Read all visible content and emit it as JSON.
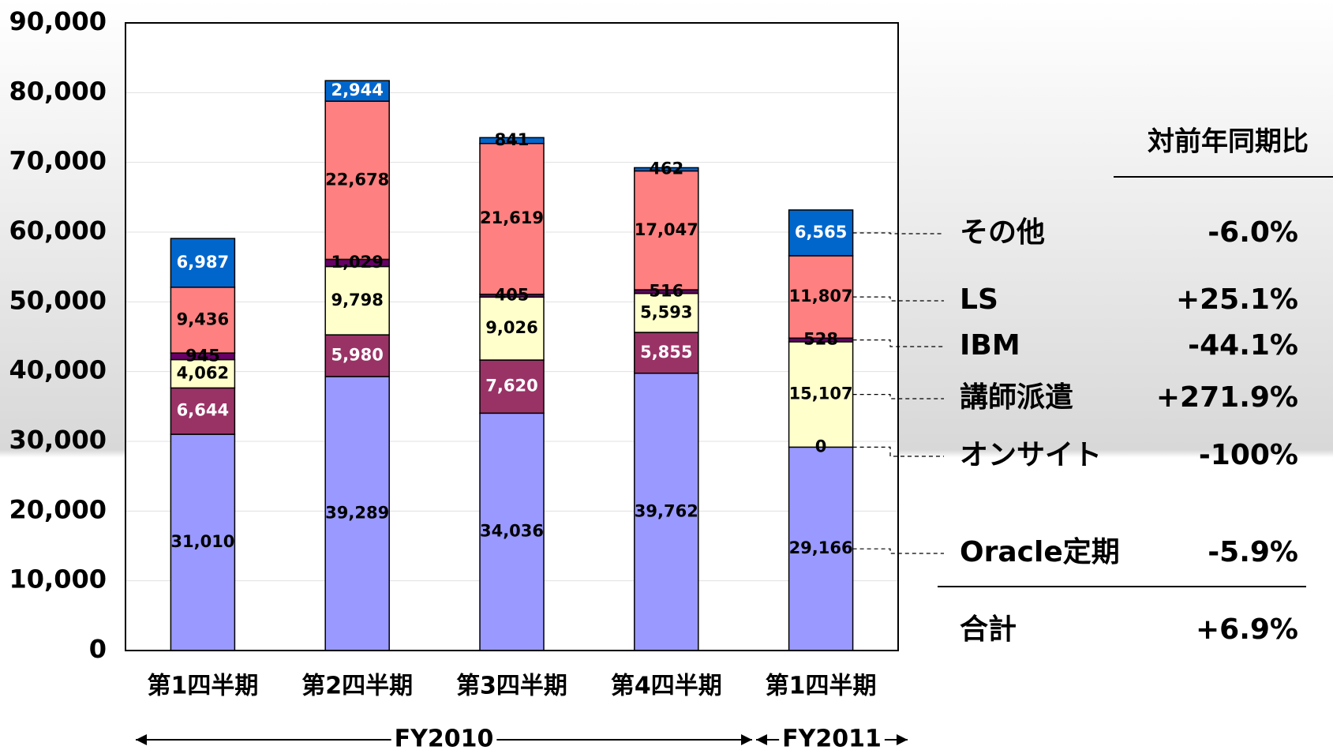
{
  "chart_data": {
    "type": "stacked_bar",
    "categories": [
      "第1四半期",
      "第2四半期",
      "第3四半期",
      "第4四半期",
      "第1四半期"
    ],
    "series": [
      {
        "name": "Oracle定期",
        "color": "#9999ff",
        "values": [
          31010,
          39289,
          34036,
          39762,
          29166
        ]
      },
      {
        "name": "オンサイト",
        "color": "#993366",
        "values": [
          6644,
          5980,
          7620,
          5855,
          0
        ]
      },
      {
        "name": "講師派遣",
        "color": "#ffffcc",
        "values": [
          4062,
          9798,
          9026,
          5593,
          15107
        ]
      },
      {
        "name": "IBM",
        "color": "#660066",
        "values": [
          945,
          1029,
          405,
          516,
          528
        ]
      },
      {
        "name": "LS",
        "color": "#ff8080",
        "values": [
          9436,
          22678,
          21619,
          17047,
          11807
        ]
      },
      {
        "name": "その他",
        "color": "#0066cc",
        "values": [
          6987,
          2944,
          841,
          462,
          6565
        ]
      }
    ],
    "value_labels": [
      [
        "31,010",
        "39,289",
        "34,036",
        "39,762",
        "29,166"
      ],
      [
        "6,644",
        "5,980",
        "7,620",
        "5,855",
        "0"
      ],
      [
        "4,062",
        "9,798",
        "9,026",
        "5,593",
        "15,107"
      ],
      [
        "945",
        "1,029",
        "405",
        "516",
        "528"
      ],
      [
        "9,436",
        "22,678",
        "21,619",
        "17,047",
        "11,807"
      ],
      [
        "6,987",
        "2,944",
        "841",
        "462",
        "6,565"
      ]
    ],
    "ylim": [
      0,
      90000
    ],
    "yticks": [
      0,
      {
        "value": 10000,
        "label": "10,000"
      },
      {
        "value": 20000,
        "label": "20,000"
      },
      {
        "value": 30000,
        "label": "30,000"
      },
      {
        "value": 40000,
        "label": "40,000"
      },
      {
        "value": 50000,
        "label": "50,000"
      },
      {
        "value": 60000,
        "label": "60,000"
      },
      {
        "value": 70000,
        "label": "70,000"
      },
      {
        "value": 80000,
        "label": "80,000"
      },
      {
        "value": 90000,
        "label": "90,000"
      }
    ],
    "grid": true,
    "periods": [
      "FY2010",
      "FY2011"
    ],
    "table": {
      "header": "対前年同期比",
      "yoy": [
        "-5.9%",
        "-100%",
        "+271.9%",
        "-44.1%",
        "+25.1%",
        "-6.0%"
      ],
      "total_label": "合計",
      "total": "+6.9%"
    }
  }
}
